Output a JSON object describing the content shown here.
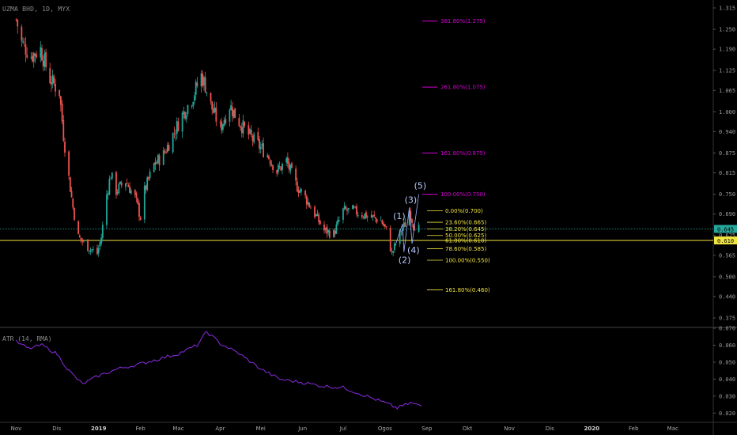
{
  "header": {
    "symbol": "UZMA BHD, 1D, MYX"
  },
  "atr": {
    "label": "ATR (14, RMA)"
  },
  "colors": {
    "up": "#26a69a",
    "down": "#ef5350",
    "atr": "#8a2be2",
    "fib_ext": "#d400d4",
    "fib_ret": "#f0e442",
    "wave": "#9bb3ff",
    "last_price": "#26a69a",
    "level_line": "#f0e442"
  },
  "chart_data": [
    {
      "type": "candlestick",
      "title": "",
      "price_axis": {
        "min": 0.375,
        "max": 1.315,
        "ticks": [
          "1.315",
          "1.250",
          "1.190",
          "1.125",
          "1.065",
          "1.000",
          "0.940",
          "0.875",
          "0.815",
          "0.750",
          "0.690",
          "0.625",
          "0.565",
          "0.500",
          "0.440",
          "0.375"
        ]
      },
      "time_axis": {
        "labels": [
          "Nov",
          "Dis",
          "2019",
          "Feb",
          "Mac",
          "Apr",
          "Mei",
          "Jun",
          "Jul",
          "Ogos",
          "Sep",
          "Okt",
          "Nov",
          "Dis",
          "2020",
          "Feb",
          "Mac"
        ]
      },
      "price_labels": [
        {
          "text": "0.645",
          "value": 0.645,
          "color": "#26a69a"
        },
        {
          "text": "0.610",
          "value": 0.61,
          "color": "#f0e442"
        }
      ],
      "trend_points": [
        {
          "date": "2018-11-01",
          "close": 1.28
        },
        {
          "date": "2018-11-05",
          "close": 1.21
        },
        {
          "date": "2018-11-12",
          "close": 1.17
        },
        {
          "date": "2018-11-19",
          "close": 1.19
        },
        {
          "date": "2018-11-26",
          "close": 1.1
        },
        {
          "date": "2018-12-03",
          "close": 1.06
        },
        {
          "date": "2018-12-06",
          "close": 0.93
        },
        {
          "date": "2018-12-10",
          "close": 0.8
        },
        {
          "date": "2018-12-13",
          "close": 0.71
        },
        {
          "date": "2018-12-17",
          "close": 0.62
        },
        {
          "date": "2018-12-24",
          "close": 0.59
        },
        {
          "date": "2018-12-31",
          "close": 0.57
        },
        {
          "date": "2019-01-03",
          "close": 0.62
        },
        {
          "date": "2019-01-07",
          "close": 0.75
        },
        {
          "date": "2019-01-10",
          "close": 0.81
        },
        {
          "date": "2019-01-14",
          "close": 0.76
        },
        {
          "date": "2019-01-21",
          "close": 0.79
        },
        {
          "date": "2019-01-28",
          "close": 0.74
        },
        {
          "date": "2019-02-01",
          "close": 0.68
        },
        {
          "date": "2019-02-04",
          "close": 0.76
        },
        {
          "date": "2019-02-11",
          "close": 0.84
        },
        {
          "date": "2019-02-18",
          "close": 0.87
        },
        {
          "date": "2019-02-25",
          "close": 0.93
        },
        {
          "date": "2019-03-04",
          "close": 0.99
        },
        {
          "date": "2019-03-11",
          "close": 1.04
        },
        {
          "date": "2019-03-18",
          "close": 1.11
        },
        {
          "date": "2019-03-21",
          "close": 1.08
        },
        {
          "date": "2019-03-25",
          "close": 1.02
        },
        {
          "date": "2019-04-01",
          "close": 0.95
        },
        {
          "date": "2019-04-08",
          "close": 1.02
        },
        {
          "date": "2019-04-15",
          "close": 0.97
        },
        {
          "date": "2019-04-22",
          "close": 0.93
        },
        {
          "date": "2019-04-29",
          "close": 0.9
        },
        {
          "date": "2019-05-06",
          "close": 0.87
        },
        {
          "date": "2019-05-13",
          "close": 0.82
        },
        {
          "date": "2019-05-20",
          "close": 0.85
        },
        {
          "date": "2019-05-27",
          "close": 0.78
        },
        {
          "date": "2019-06-03",
          "close": 0.74
        },
        {
          "date": "2019-06-10",
          "close": 0.69
        },
        {
          "date": "2019-06-17",
          "close": 0.64
        },
        {
          "date": "2019-06-24",
          "close": 0.63
        },
        {
          "date": "2019-07-01",
          "close": 0.7
        },
        {
          "date": "2019-07-08",
          "close": 0.7
        },
        {
          "date": "2019-07-15",
          "close": 0.69
        },
        {
          "date": "2019-07-22",
          "close": 0.68
        },
        {
          "date": "2019-07-29",
          "close": 0.67
        },
        {
          "date": "2019-08-02",
          "close": 0.64
        },
        {
          "date": "2019-08-06",
          "close": 0.57
        },
        {
          "date": "2019-08-09",
          "close": 0.6
        },
        {
          "date": "2019-08-13",
          "close": 0.64
        },
        {
          "date": "2019-08-16",
          "close": 0.66
        },
        {
          "date": "2019-08-19",
          "close": 0.7
        },
        {
          "date": "2019-08-22",
          "close": 0.66
        },
        {
          "date": "2019-08-26",
          "close": 0.645
        }
      ],
      "fibonacci_extension": [
        {
          "label": "361.80%(1.275)",
          "value": 1.275
        },
        {
          "label": "261.80%(1.075)",
          "value": 1.075
        },
        {
          "label": "161.80%(0.875)",
          "value": 0.875
        },
        {
          "label": "100.00%(0.750)",
          "value": 0.75
        }
      ],
      "fibonacci_retracement": [
        {
          "label": "0.00%(0.700)",
          "value": 0.7
        },
        {
          "label": "23.60%(0.665)",
          "value": 0.665
        },
        {
          "label": "38.20%(0.645)",
          "value": 0.645
        },
        {
          "label": "50.00%(0.625)",
          "value": 0.625
        },
        {
          "label": "61.80%(0.610)",
          "value": 0.61
        },
        {
          "label": "78.60%(0.585)",
          "value": 0.585
        },
        {
          "label": "100.00%(0.550)",
          "value": 0.55
        },
        {
          "label": "161.80%(0.460)",
          "value": 0.46
        }
      ],
      "elliott_waves": [
        {
          "label": "(1)",
          "date": "2019-08-14",
          "price": 0.66
        },
        {
          "label": "(2)",
          "date": "2019-08-15",
          "price": 0.575
        },
        {
          "label": "(3)",
          "date": "2019-08-19",
          "price": 0.71
        },
        {
          "label": "(4)",
          "date": "2019-08-21",
          "price": 0.6
        },
        {
          "label": "(5)",
          "date": "2019-08-26",
          "price": 0.75
        }
      ],
      "horizontal_levels": [
        0.645,
        0.61
      ]
    },
    {
      "type": "line",
      "title": "ATR (14, RMA)",
      "y_axis": {
        "min": 0.015,
        "max": 0.07,
        "ticks": [
          "0.070",
          "0.060",
          "0.050",
          "0.040",
          "0.030",
          "0.020"
        ]
      },
      "series": [
        {
          "name": "",
          "points": [
            {
              "date": "2018-11-01",
              "value": 0.062
            },
            {
              "date": "2018-11-10",
              "value": 0.058
            },
            {
              "date": "2018-11-20",
              "value": 0.06
            },
            {
              "date": "2018-12-01",
              "value": 0.055
            },
            {
              "date": "2018-12-10",
              "value": 0.045
            },
            {
              "date": "2018-12-20",
              "value": 0.037
            },
            {
              "date": "2019-01-01",
              "value": 0.042
            },
            {
              "date": "2019-01-15",
              "value": 0.046
            },
            {
              "date": "2019-02-01",
              "value": 0.049
            },
            {
              "date": "2019-02-15",
              "value": 0.052
            },
            {
              "date": "2019-03-01",
              "value": 0.055
            },
            {
              "date": "2019-03-15",
              "value": 0.06
            },
            {
              "date": "2019-03-22",
              "value": 0.068
            },
            {
              "date": "2019-04-01",
              "value": 0.061
            },
            {
              "date": "2019-04-15",
              "value": 0.055
            },
            {
              "date": "2019-05-01",
              "value": 0.046
            },
            {
              "date": "2019-05-15",
              "value": 0.04
            },
            {
              "date": "2019-06-01",
              "value": 0.038
            },
            {
              "date": "2019-06-15",
              "value": 0.036
            },
            {
              "date": "2019-07-01",
              "value": 0.035
            },
            {
              "date": "2019-07-15",
              "value": 0.031
            },
            {
              "date": "2019-08-01",
              "value": 0.026
            },
            {
              "date": "2019-08-10",
              "value": 0.023
            },
            {
              "date": "2019-08-20",
              "value": 0.026
            },
            {
              "date": "2019-08-28",
              "value": 0.024
            }
          ]
        }
      ]
    }
  ]
}
